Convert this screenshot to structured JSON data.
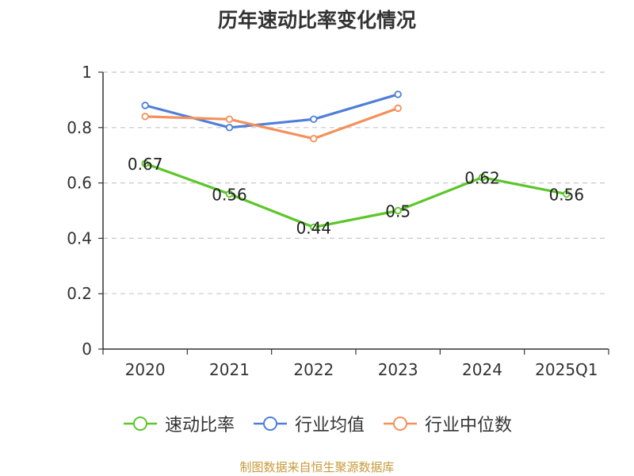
{
  "chart_data": {
    "type": "line",
    "title": "历年速动比率变化情况",
    "categories": [
      "2020",
      "2021",
      "2022",
      "2023",
      "2024",
      "2025Q1"
    ],
    "ylim": [
      0,
      1
    ],
    "yticks": [
      0,
      0.2,
      0.4,
      0.6,
      0.8,
      1
    ],
    "ytick_labels": [
      "0",
      "0.2",
      "0.4",
      "0.6",
      "0.8",
      "1"
    ],
    "grid": true,
    "legend_position": "bottom",
    "series": [
      {
        "name": "速动比率",
        "color": "#5cc62a",
        "values": [
          0.67,
          0.56,
          0.44,
          0.5,
          0.62,
          0.56
        ],
        "labels": [
          "0.67",
          "0.56",
          "0.44",
          "0.5",
          "0.62",
          "0.56"
        ]
      },
      {
        "name": "行业均值",
        "color": "#4f7fd8",
        "values": [
          0.88,
          0.8,
          0.83,
          0.92,
          null,
          null
        ]
      },
      {
        "name": "行业中位数",
        "color": "#f4905a",
        "values": [
          0.84,
          0.83,
          0.76,
          0.87,
          null,
          null
        ]
      }
    ]
  },
  "source": "制图数据来自恒生聚源数据库"
}
